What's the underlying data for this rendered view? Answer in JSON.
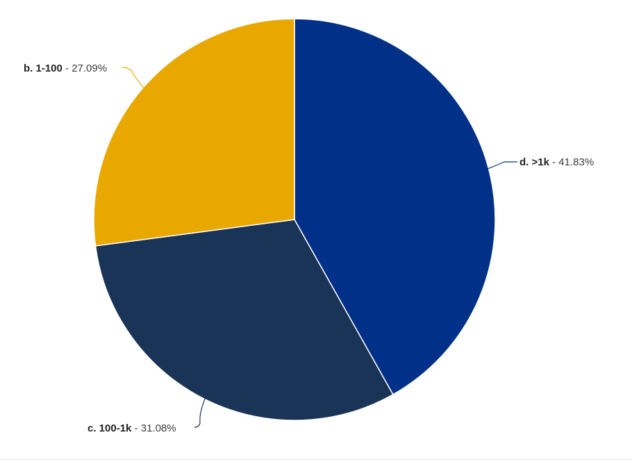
{
  "chart_data": {
    "type": "pie",
    "start_angle_deg": 0,
    "direction": "clockwise",
    "slices": [
      {
        "label": "d. >1k",
        "value": 41.83,
        "display": "41.83%",
        "color": "#003087"
      },
      {
        "label": "c. 100-1k",
        "value": 31.08,
        "display": "31.08%",
        "color": "#1a3457"
      },
      {
        "label": "b. 1-100",
        "value": 27.09,
        "display": "27.09%",
        "color": "#e8a800"
      }
    ],
    "label_separator": " - "
  }
}
